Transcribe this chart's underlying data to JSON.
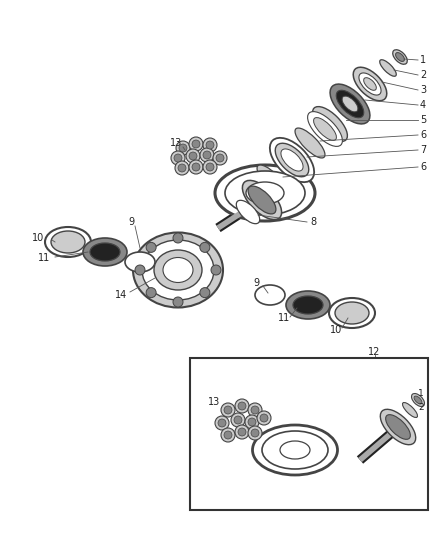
{
  "bg_color": "#ffffff",
  "fig_width": 4.38,
  "fig_height": 5.33,
  "dpi": 100,
  "lc": "#444444",
  "lgray": "#cccccc",
  "dgray": "#888888",
  "blk": "#222222",
  "mdgray": "#aaaaaa"
}
